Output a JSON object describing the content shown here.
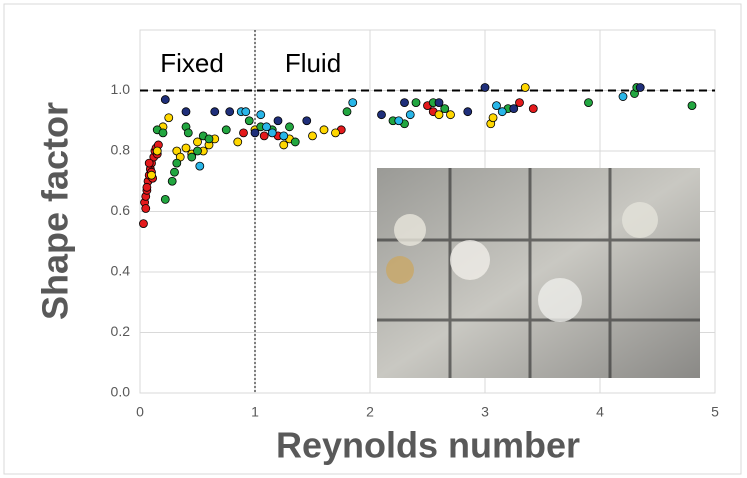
{
  "chart_data": {
    "type": "scatter",
    "x_label": "Reynolds number",
    "y_label": "Shape factor",
    "annotations": [
      "Fixed",
      "Fluid"
    ],
    "hline": 1.0,
    "vline": 1,
    "xlim": [
      0,
      5
    ],
    "xticks": [
      0,
      1,
      2,
      3,
      4,
      5
    ],
    "ylim": [
      0,
      1.2
    ],
    "yticks": [
      {
        "value": 0,
        "label": "0.0"
      },
      {
        "value": 0.2,
        "label": "0.2"
      },
      {
        "value": 0.4,
        "label": "0.4"
      },
      {
        "value": 0.6,
        "label": "0.6"
      },
      {
        "value": 0.8,
        "label": "0.8"
      },
      {
        "value": 1.0,
        "label": "1.0"
      }
    ],
    "grid": true,
    "series": [
      {
        "color": "#e31a1c",
        "x": [
          0.03,
          0.04,
          0.05,
          0.06,
          0.07,
          0.08,
          0.09,
          0.1,
          0.12,
          0.13,
          0.14,
          0.15,
          0.06,
          0.1,
          0.05,
          0.08,
          0.11,
          0.16,
          0.9,
          1.08,
          1.2,
          1.75,
          2.5,
          2.55,
          3.3,
          3.42
        ],
        "values": [
          0.56,
          0.63,
          0.65,
          0.67,
          0.7,
          0.72,
          0.74,
          0.76,
          0.78,
          0.8,
          0.81,
          0.79,
          0.68,
          0.73,
          0.61,
          0.76,
          0.71,
          0.82,
          0.86,
          0.85,
          0.85,
          0.87,
          0.95,
          0.93,
          0.96,
          0.94
        ]
      },
      {
        "color": "#ffd700",
        "x": [
          0.1,
          0.15,
          0.2,
          0.25,
          0.32,
          0.35,
          0.4,
          0.45,
          0.5,
          0.55,
          0.6,
          0.65,
          0.85,
          1.0,
          1.25,
          1.3,
          1.5,
          1.6,
          1.7,
          2.6,
          2.7,
          3.05,
          3.07,
          3.35
        ],
        "values": [
          0.72,
          0.8,
          0.88,
          0.91,
          0.8,
          0.78,
          0.81,
          0.79,
          0.83,
          0.8,
          0.82,
          0.84,
          0.83,
          0.87,
          0.82,
          0.84,
          0.85,
          0.87,
          0.86,
          0.92,
          0.92,
          0.89,
          0.91,
          1.01
        ]
      },
      {
        "color": "#22a640",
        "x": [
          0.15,
          0.2,
          0.22,
          0.28,
          0.3,
          0.32,
          0.4,
          0.42,
          0.45,
          0.5,
          0.55,
          0.6,
          0.75,
          0.95,
          1.05,
          1.15,
          1.3,
          1.35,
          1.8,
          2.2,
          2.3,
          2.4,
          2.55,
          2.65,
          3.2,
          3.9,
          4.3,
          4.32,
          4.8
        ],
        "values": [
          0.87,
          0.86,
          0.64,
          0.7,
          0.73,
          0.76,
          0.88,
          0.86,
          0.78,
          0.8,
          0.85,
          0.84,
          0.87,
          0.9,
          0.88,
          0.87,
          0.88,
          0.83,
          0.93,
          0.9,
          0.89,
          0.96,
          0.96,
          0.94,
          0.94,
          0.96,
          0.99,
          1.01,
          0.95
        ]
      },
      {
        "color": "#29b6e8",
        "x": [
          0.52,
          0.88,
          0.92,
          1.05,
          1.1,
          1.15,
          1.25,
          1.85,
          2.25,
          2.35,
          3.1,
          3.15,
          4.2
        ],
        "values": [
          0.75,
          0.93,
          0.93,
          0.92,
          0.88,
          0.86,
          0.85,
          0.96,
          0.9,
          0.92,
          0.95,
          0.93,
          0.98
        ]
      },
      {
        "color": "#1f2f7a",
        "x": [
          0.22,
          0.4,
          0.65,
          0.78,
          1.0,
          1.2,
          1.45,
          2.1,
          2.3,
          2.6,
          2.85,
          3.0,
          3.25,
          4.35
        ],
        "values": [
          0.97,
          0.93,
          0.93,
          0.93,
          0.86,
          0.9,
          0.9,
          0.92,
          0.96,
          0.96,
          0.93,
          1.01,
          0.94,
          1.01
        ]
      }
    ]
  }
}
